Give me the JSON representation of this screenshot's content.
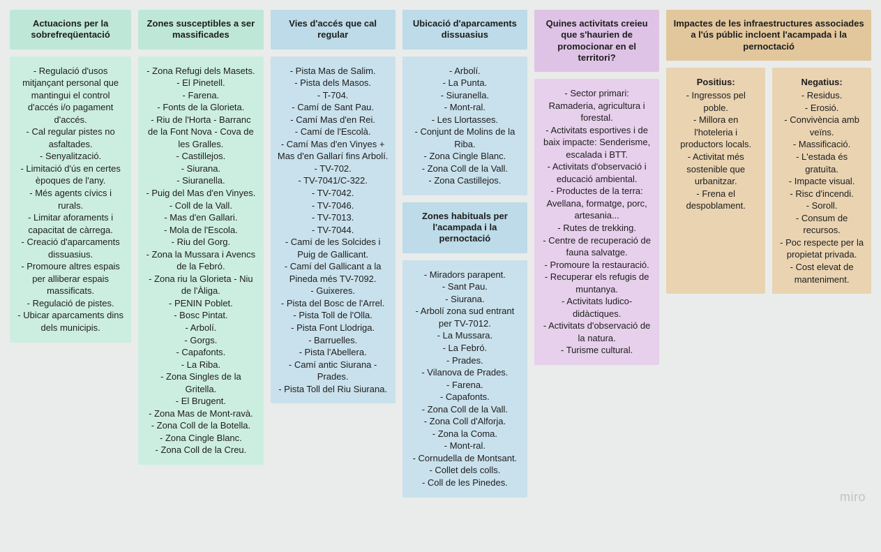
{
  "colors": {
    "page_bg": "#e9ecea",
    "green_header": "#bfe7d7",
    "green_body": "#cceee0",
    "blue_header": "#bddbe8",
    "blue_body": "#c9e1ec",
    "pink_header": "#dfc3e6",
    "pink_body": "#e7d0ec",
    "tan_header": "#e2c79d",
    "tan_body": "#e9d3b1",
    "text": "#1d1d1d",
    "watermark": "#bfc4c1"
  },
  "typography": {
    "header_weight": 700,
    "body_weight": 400,
    "font_size_pt": 10,
    "header_font_size_pt": 10
  },
  "watermark": "miro",
  "columns": {
    "col1": {
      "header": "Actuacions per la sobrefreqüentació",
      "items": [
        "Regulació d'usos mitjançant personal que mantingui el control d'accés i/o pagament d'accés.",
        "Cal regular pistes no asfaltades.",
        "Senyalització.",
        "Limitació d'ús en certes èpoques de l'any.",
        "Més agents cívics i rurals.",
        "Limitar aforaments i capacitat de càrrega.",
        "Creació d'aparcaments dissuasius.",
        "Promoure altres espais per alliberar espais massificats.",
        "Regulació de pistes.",
        "Ubicar aparcaments dins dels municipis."
      ]
    },
    "col2": {
      "header": "Zones susceptibles a ser massificades",
      "items": [
        "Zona Refugi dels Masets.",
        "El Pinetell.",
        "Farena.",
        "Fonts de la Glorieta.",
        "Riu de l'Horta - Barranc de la Font Nova - Cova de les Gralles.",
        "Castillejos.",
        "Siurana.",
        "Siuranella.",
        "Puig del Mas d'en Vinyes.",
        "Coll de la Vall.",
        "Mas d'en Gallari.",
        "Mola de l'Escola.",
        "Riu del Gorg.",
        "Zona la Mussara i Avencs de la Febró.",
        "Zona riu la Glorieta - Niu de l'Àliga.",
        "PENIN Poblet.",
        "Bosc Pintat.",
        "Arbolí.",
        "Gorgs.",
        "Capafonts.",
        "La Riba.",
        "Zona Singles de la Gritella.",
        "El Brugent.",
        "Zona Mas de Mont-ravà.",
        "Zona Coll de la Botella.",
        "Zona Cingle Blanc.",
        "Zona Coll de la Creu."
      ]
    },
    "col3": {
      "header": "Vies d'accés que cal regular",
      "items": [
        "Pista Mas de Salim.",
        "Pista dels Masos.",
        "T-704.",
        "Camí de Sant Pau.",
        "Camí Mas d'en Rei.",
        "Camí de l'Escolà.",
        "Camí Mas d'en Vinyes + Mas d'en Gallarí fins Arbolí.",
        "TV-702.",
        "TV-7041/C-322.",
        "TV-7042.",
        "TV-7046.",
        "TV-7013.",
        "TV-7044.",
        "Camí de les Solcides i Puig de Gallicant.",
        "Camí del Gallicant a la Pineda més TV-7092.",
        "Guixeres.",
        "Pista del Bosc de l'Arrel.",
        "Pista Toll de l'Olla.",
        "Pista Font Llodriga.",
        "Barruelles.",
        "Pista l'Abellera.",
        "Camí antic Siurana - Prades.",
        "Pista Toll del Riu Siurana."
      ]
    },
    "col4a": {
      "header": "Ubicació d'aparcaments dissuasius",
      "items": [
        "Arbolí.",
        "La Punta.",
        "Siuranella.",
        "Mont-ral.",
        "Les Llortasses.",
        "Conjunt de Molins de la Riba.",
        "Zona Cingle Blanc.",
        "Zona Coll de la Vall.",
        "Zona Castillejos."
      ]
    },
    "col4b": {
      "header": "Zones habituals per l'acampada i la pernoctació",
      "items": [
        "Miradors parapent.",
        "Sant Pau.",
        "Siurana.",
        "Arbolí zona sud entrant per TV-7012.",
        "La Mussara.",
        "La Febró.",
        "Prades.",
        "Vilanova de Prades.",
        "Farena.",
        "Capafonts.",
        "Zona Coll de la Vall.",
        "Zona Coll d'Alforja.",
        "Zona la Coma.",
        "Mont-ral.",
        "Cornudella de Montsant.",
        "Collet dels colls.",
        "Coll de les Pinedes."
      ]
    },
    "col5": {
      "header": "Quines activitats creieu que s'haurien de promocionar en el territori?",
      "items": [
        "Sector primari: Ramaderia, agricultura i forestal.",
        "Activitats esportives i de baix impacte: Senderisme, escalada i BTT.",
        "Activitats d'observació i educació ambiental.",
        "Productes de la terra: Avellana, formatge, porc, artesania...",
        "Rutes de trekking.",
        "Centre de recuperació de fauna salvatge.",
        "Promoure la restauració.",
        "Recuperar els refugis de muntanya.",
        "Activitats ludico-didàctiques.",
        "Activitats d'observació de la natura.",
        "Turisme cultural."
      ]
    },
    "col6": {
      "header": "Impactes de les infraestructures associades a l'ús públic incloent l'acampada i la pernoctació",
      "positive_title": "Positius:",
      "negative_title": "Negatius:",
      "positives": [
        "Ingressos pel poble.",
        "Millora en l'hoteleria i productors locals.",
        "Activitat més sostenible que urbanitzar.",
        "Frena el despoblament."
      ],
      "negatives": [
        "Residus.",
        "Erosió.",
        "Convivència amb veïns.",
        "Massificació.",
        "L'estada és gratuïta.",
        "Impacte visual.",
        "Risc d'incendi.",
        "Soroll.",
        "Consum de recursos.",
        "Poc respecte per la propietat privada.",
        "Cost elevat de manteniment."
      ]
    }
  }
}
